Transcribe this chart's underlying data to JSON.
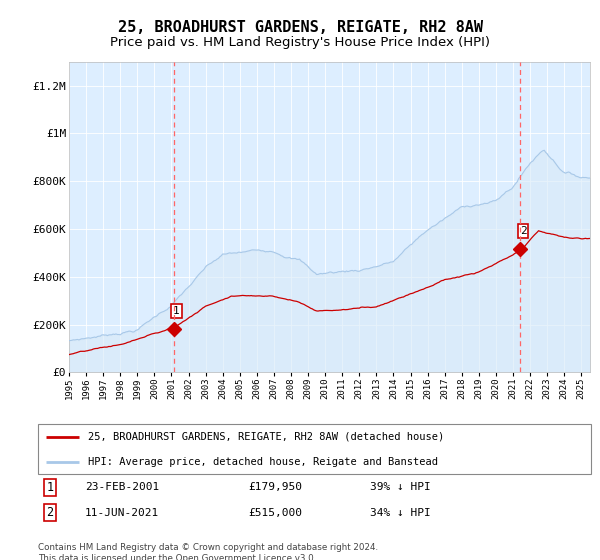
{
  "title": "25, BROADHURST GARDENS, REIGATE, RH2 8AW",
  "subtitle": "Price paid vs. HM Land Registry's House Price Index (HPI)",
  "legend_line1": "25, BROADHURST GARDENS, REIGATE, RH2 8AW (detached house)",
  "legend_line2": "HPI: Average price, detached house, Reigate and Banstead",
  "annotation1_price": 179950,
  "annotation2_price": 515000,
  "footnote": "Contains HM Land Registry data © Crown copyright and database right 2024.\nThis data is licensed under the Open Government Licence v3.0.",
  "hpi_color": "#a8c8e8",
  "hpi_fill": "#d8eaf8",
  "price_color": "#cc0000",
  "marker_color": "#cc0000",
  "dashed_line_color": "#ff6666",
  "bg_color": "#ddeeff",
  "grid_color": "#ffffff",
  "ylim": [
    0,
    1300000
  ],
  "yticks": [
    0,
    200000,
    400000,
    600000,
    800000,
    1000000,
    1200000
  ],
  "ytick_labels": [
    "£0",
    "£200K",
    "£400K",
    "£600K",
    "£800K",
    "£1M",
    "£1.2M"
  ],
  "marker1_x": 2001.15,
  "marker2_x": 2021.44,
  "title_fontsize": 11,
  "subtitle_fontsize": 9.5,
  "axis_fontsize": 7.5
}
